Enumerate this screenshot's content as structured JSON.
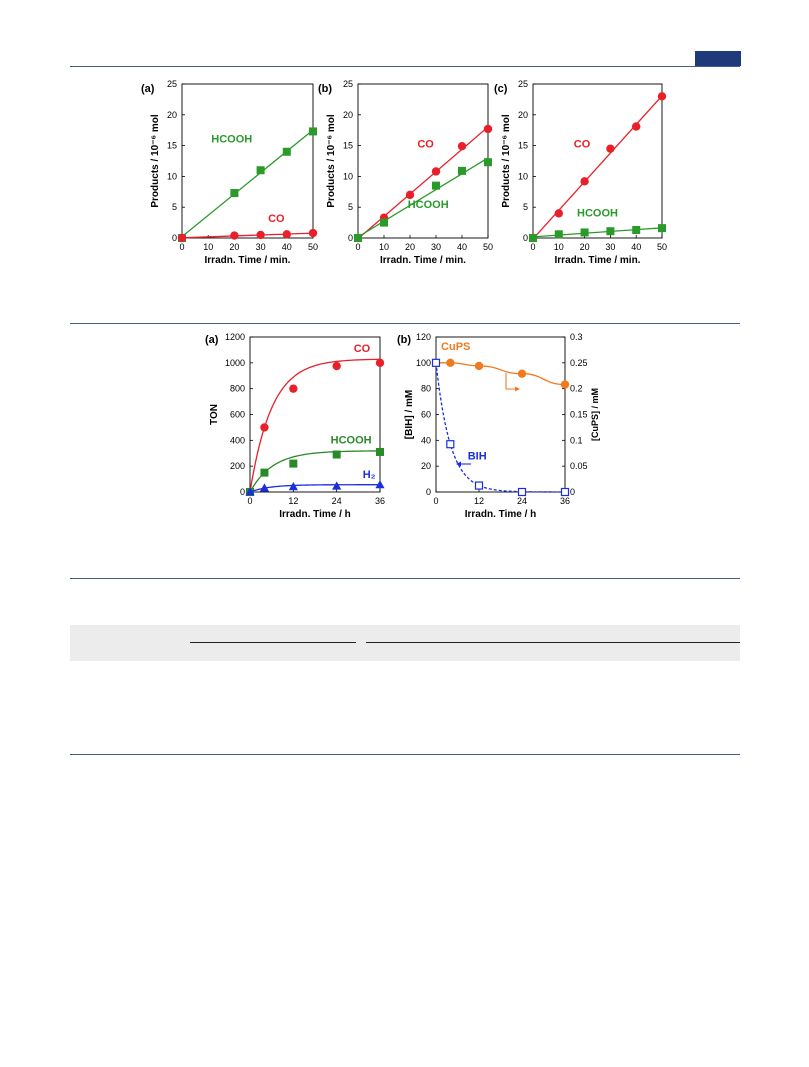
{
  "page": {
    "accent_color": "#1f3a7a",
    "rule_color": "#4a5a8a"
  },
  "figure1": {
    "panels": [
      {
        "label": "(a)",
        "chart_data": {
          "type": "scatter",
          "xlabel": "Irradn. Time / min.",
          "ylabel": "Products / 10⁻⁶ mol",
          "xlim": [
            0,
            50
          ],
          "ylim": [
            0,
            25
          ],
          "xticks": [
            "0",
            "10",
            "20",
            "30",
            "40",
            "50"
          ],
          "yticks": [
            "0",
            "5",
            "10",
            "15",
            "20",
            "25"
          ],
          "grid": false,
          "series": [
            {
              "name": "HCOOH",
              "color": "#2a9a2a",
              "marker": "square",
              "x": [
                0,
                20,
                30,
                40,
                50
              ],
              "y": [
                0,
                7.3,
                11.0,
                14.0,
                17.3
              ],
              "fit": "line"
            },
            {
              "name": "CO",
              "color": "#e8202a",
              "marker": "circle",
              "x": [
                0,
                20,
                30,
                40,
                50
              ],
              "y": [
                0,
                0.4,
                0.5,
                0.6,
                0.8
              ],
              "fit": "line"
            }
          ],
          "annotations": [
            {
              "text": "HCOOH",
              "color": "#2a9a2a",
              "x": 19,
              "y": 15.5
            },
            {
              "text": "CO",
              "color": "#e8202a",
              "x": 36,
              "y": 2.6
            }
          ]
        }
      },
      {
        "label": "(b)",
        "chart_data": {
          "type": "scatter",
          "xlabel": "Irradn. Time / min.",
          "ylabel": "Products / 10⁻⁶ mol",
          "xlim": [
            0,
            50
          ],
          "ylim": [
            0,
            25
          ],
          "xticks": [
            "0",
            "10",
            "20",
            "30",
            "40",
            "50"
          ],
          "yticks": [
            "0",
            "5",
            "10",
            "15",
            "20",
            "25"
          ],
          "grid": false,
          "series": [
            {
              "name": "CO",
              "color": "#e8202a",
              "marker": "circle",
              "x": [
                0,
                10,
                20,
                30,
                40,
                50
              ],
              "y": [
                0,
                3.3,
                7.0,
                10.8,
                14.9,
                17.7
              ],
              "fit": "line"
            },
            {
              "name": "HCOOH",
              "color": "#2a9a2a",
              "marker": "square",
              "x": [
                0,
                10,
                30,
                40,
                50
              ],
              "y": [
                0,
                2.5,
                8.5,
                10.9,
                12.3
              ],
              "fit": "line"
            }
          ],
          "annotations": [
            {
              "text": "CO",
              "color": "#e8202a",
              "x": 26,
              "y": 14.7
            },
            {
              "text": "HCOOH",
              "color": "#2a9a2a",
              "x": 27,
              "y": 4.9
            }
          ]
        }
      },
      {
        "label": "(c)",
        "chart_data": {
          "type": "scatter",
          "xlabel": "Irradn. Time / min.",
          "ylabel": "Products / 10⁻⁶ mol",
          "xlim": [
            0,
            50
          ],
          "ylim": [
            0,
            25
          ],
          "xticks": [
            "0",
            "10",
            "20",
            "30",
            "40",
            "50"
          ],
          "yticks": [
            "0",
            "5",
            "10",
            "15",
            "20",
            "25"
          ],
          "grid": false,
          "series": [
            {
              "name": "CO",
              "color": "#e8202a",
              "marker": "circle",
              "x": [
                0,
                10,
                20,
                30,
                40,
                50
              ],
              "y": [
                0,
                4.0,
                9.2,
                14.5,
                18.1,
                23.0
              ],
              "fit": "line"
            },
            {
              "name": "HCOOH",
              "color": "#2a9a2a",
              "marker": "square",
              "x": [
                0,
                10,
                20,
                30,
                40,
                50
              ],
              "y": [
                0,
                0.6,
                0.9,
                1.1,
                1.3,
                1.6
              ],
              "fit": "line"
            }
          ],
          "annotations": [
            {
              "text": "CO",
              "color": "#e8202a",
              "x": 19,
              "y": 14.7
            },
            {
              "text": "HCOOH",
              "color": "#2a9a2a",
              "x": 25,
              "y": 3.5
            }
          ]
        }
      }
    ]
  },
  "figure2": {
    "panels": [
      {
        "label": "(a)",
        "chart_data": {
          "type": "scatter",
          "xlabel": "Irradn. Time / h",
          "ylabel": "TON",
          "xlim": [
            0,
            36
          ],
          "ylim": [
            0,
            1200
          ],
          "xticks": [
            "0",
            "12",
            "24",
            "36"
          ],
          "yticks": [
            "0",
            "200",
            "400",
            "600",
            "800",
            "1000",
            "1200"
          ],
          "grid": false,
          "series": [
            {
              "name": "CO",
              "color": "#e8202a",
              "marker": "circle",
              "x": [
                0,
                4,
                12,
                24,
                36
              ],
              "y": [
                0,
                500,
                800,
                975,
                1000
              ],
              "fit": "saturation"
            },
            {
              "name": "HCOOH",
              "color": "#2a8a2a",
              "marker": "square",
              "x": [
                0,
                4,
                12,
                24,
                36
              ],
              "y": [
                0,
                150,
                220,
                290,
                310
              ],
              "fit": "saturation"
            },
            {
              "name": "H2",
              "color": "#1a2ee0",
              "marker": "triangle",
              "x": [
                0,
                4,
                12,
                24,
                36
              ],
              "y": [
                0,
                30,
                40,
                45,
                55
              ],
              "fit": "saturation"
            }
          ],
          "annotations": [
            {
              "text": "CO",
              "color": "#e8202a",
              "x": 31,
              "y": 1085
            },
            {
              "text": "HCOOH",
              "color": "#2a8a2a",
              "x": 28,
              "y": 375
            },
            {
              "text": "H₂",
              "color": "#1a2ee0",
              "x": 33,
              "y": 110
            }
          ]
        }
      },
      {
        "label": "(b)",
        "chart_data": {
          "type": "scatter",
          "xlabel": "Irradn. Time / h",
          "ylabel": "[BIH] / mM",
          "y2label": "[CuPS] / mM",
          "xlim": [
            0,
            36
          ],
          "ylim": [
            0,
            120
          ],
          "y2lim": [
            0,
            0.3
          ],
          "xticks": [
            "0",
            "12",
            "24",
            "36"
          ],
          "yticks": [
            "0",
            "20",
            "40",
            "60",
            "80",
            "100",
            "120"
          ],
          "y2ticks": [
            "0",
            "0.05",
            "0.1",
            "0.15",
            "0.2",
            "0.25",
            "0.3"
          ],
          "grid": false,
          "series": [
            {
              "name": "CuPS",
              "color": "#f07a20",
              "marker": "circle",
              "axis": "right",
              "x": [
                0,
                4,
                12,
                24,
                36
              ],
              "y": [
                0.25,
                0.25,
                0.244,
                0.229,
                0.208
              ],
              "fit": "smooth"
            },
            {
              "name": "BIH",
              "color": "#1a2ee0",
              "marker": "open-square",
              "axis": "left",
              "dashed": true,
              "x": [
                0,
                4,
                12,
                24,
                36
              ],
              "y": [
                100,
                37,
                5,
                0,
                0
              ],
              "fit": "decay"
            }
          ],
          "annotations": [
            {
              "text": "CuPS",
              "color": "#f07a20",
              "x": 5.5,
              "y": 110
            },
            {
              "text": "BIH",
              "color": "#1a2ee0",
              "x": 11.5,
              "y": 25
            }
          ]
        }
      }
    ]
  }
}
